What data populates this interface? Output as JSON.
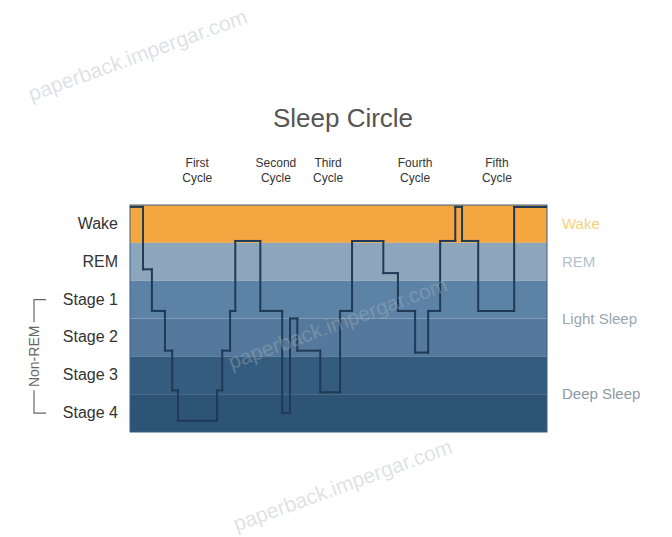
{
  "chart_data": {
    "type": "line",
    "title": "Sleep Circle",
    "watermark": "paperback.impergar.com",
    "line_style": "step",
    "grid": false,
    "tick_labels": "y",
    "xlim": [
      0,
      8
    ],
    "ylim": [
      0,
      6
    ],
    "yticks": [
      {
        "value": 5.5,
        "label": "Wake"
      },
      {
        "value": 4.5,
        "label": "REM"
      },
      {
        "value": 3.5,
        "label": "Stage 1"
      },
      {
        "value": 2.5,
        "label": "Stage 2"
      },
      {
        "value": 1.5,
        "label": "Stage 3"
      },
      {
        "value": 0.5,
        "label": "Stage 4"
      }
    ],
    "x": [
      0,
      0.25,
      0.42,
      0.67,
      0.81,
      0.92,
      1.67,
      1.77,
      1.92,
      2.02,
      2.5,
      2.92,
      3.07,
      3.21,
      3.65,
      4.03,
      4.26,
      4.86,
      5.14,
      5.47,
      5.72,
      5.95,
      6.24,
      6.37,
      6.68,
      7.37
    ],
    "series": [
      {
        "color": "#1f3a56",
        "values": [
          5.95,
          4.3,
          3.2,
          2.15,
          1.1,
          0.3,
          1.1,
          2.15,
          3.2,
          5.05,
          3.2,
          0.5,
          3.0,
          2.15,
          1.05,
          3.2,
          5.05,
          4.2,
          3.2,
          2.1,
          3.2,
          5.05,
          5.95,
          5.05,
          3.2,
          5.95
        ]
      }
    ],
    "bands": [
      {
        "from": 5,
        "to": 6,
        "color": "#f4a641"
      },
      {
        "from": 4,
        "to": 5,
        "color": "#8ea6bb"
      },
      {
        "from": 3,
        "to": 4,
        "color": "#5c83a6"
      },
      {
        "from": 2,
        "to": 3,
        "color": "#55799c"
      },
      {
        "from": 1,
        "to": 2,
        "color": "#345c7e"
      },
      {
        "from": 0,
        "to": 1,
        "color": "#2e5475"
      }
    ],
    "zones": [
      {
        "label": "Wake",
        "from": 5,
        "to": 6,
        "color": "#f7d27b"
      },
      {
        "label": "REM",
        "from": 4,
        "to": 5,
        "color": "#b5c0ca"
      },
      {
        "label": "Light Sleep",
        "from": 2,
        "to": 4,
        "color": "#9aa6b1"
      },
      {
        "label": "Deep Sleep",
        "from": 0,
        "to": 2,
        "color": "#8c99a6"
      }
    ],
    "y_group": {
      "text": "Non-REM",
      "from": 0.5,
      "to": 3.5
    },
    "annotations": [
      {
        "text": "First Cycle",
        "x": 1.29
      },
      {
        "text": "Second Cycle",
        "x": 2.8
      },
      {
        "text": "Third Cycle",
        "x": 3.8
      },
      {
        "text": "Fourth Cycle",
        "x": 5.47
      },
      {
        "text": "Fifth Cycle",
        "x": 7.04
      }
    ]
  }
}
